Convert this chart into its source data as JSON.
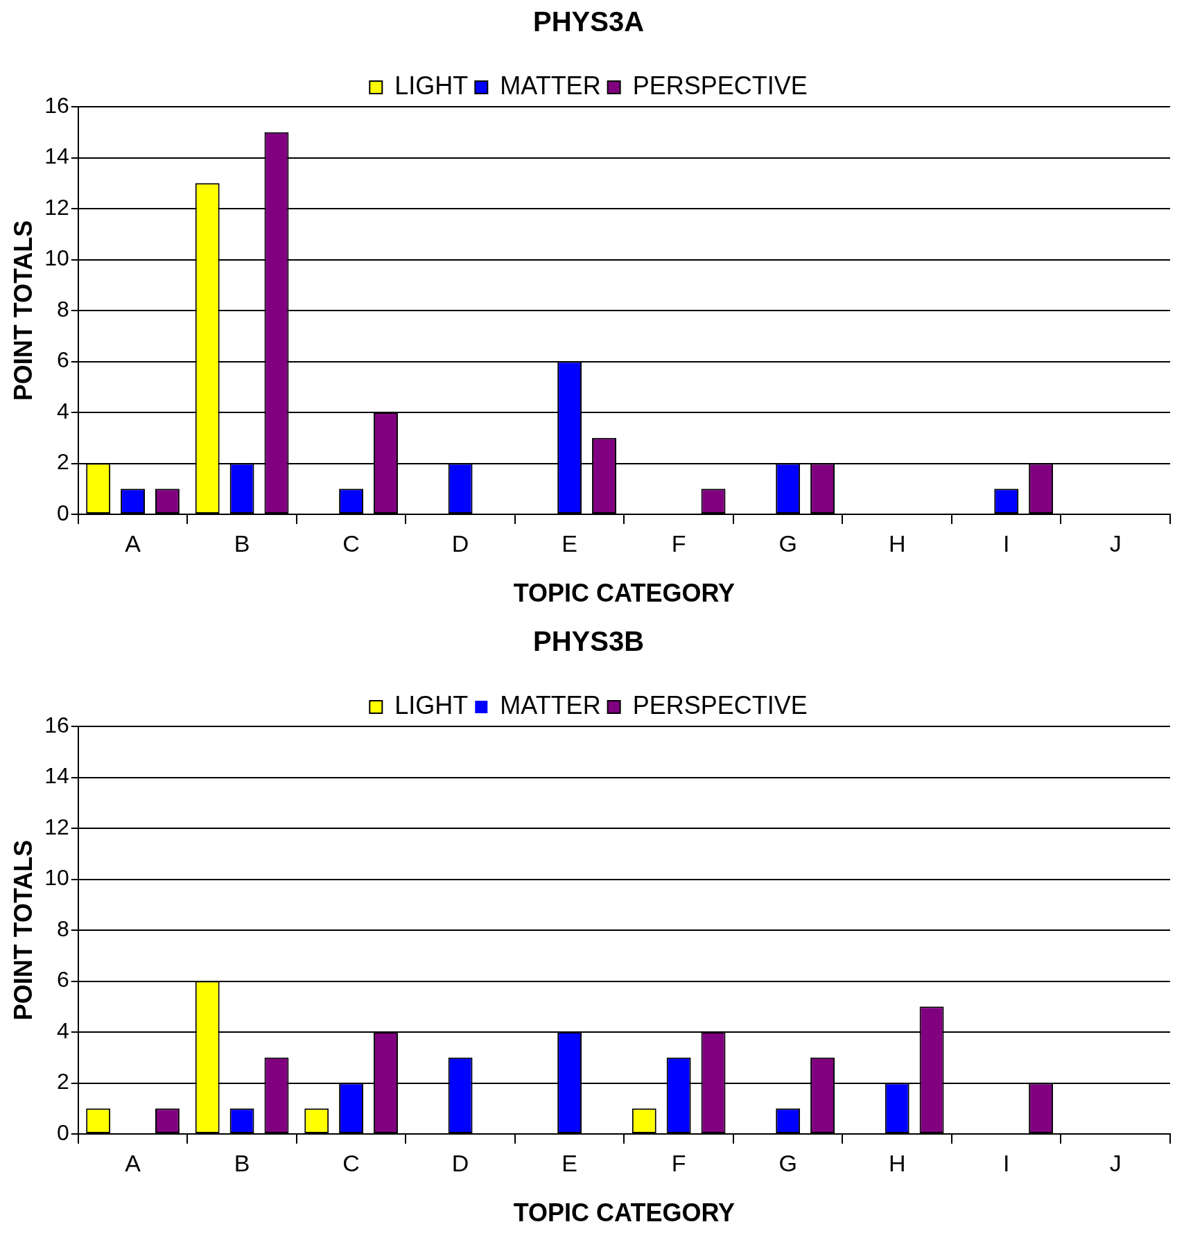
{
  "chart_data": [
    {
      "type": "bar",
      "title": "PHYS3A",
      "xlabel": "TOPIC CATEGORY",
      "ylabel": "POINT TOTALS",
      "categories": [
        "A",
        "B",
        "C",
        "D",
        "E",
        "F",
        "G",
        "H",
        "I",
        "J"
      ],
      "series": [
        {
          "name": "LIGHT",
          "color": "#ffff00",
          "values": [
            2,
            13,
            0,
            0,
            0,
            0,
            0,
            0,
            0,
            0
          ]
        },
        {
          "name": "MATTER",
          "color": "#0000ff",
          "values": [
            1,
            2,
            1,
            2,
            6,
            0,
            2,
            0,
            1,
            0
          ]
        },
        {
          "name": "PERSPECTIVE",
          "color": "#800080",
          "values": [
            1,
            15,
            4,
            0,
            3,
            1,
            2,
            0,
            2,
            0
          ]
        }
      ],
      "ylim": [
        0,
        16
      ],
      "yticks": [
        0,
        2,
        4,
        6,
        8,
        10,
        12,
        14,
        16
      ],
      "grid": "y",
      "legend": "top"
    },
    {
      "type": "bar",
      "title": "PHYS3B",
      "xlabel": "TOPIC CATEGORY",
      "ylabel": "POINT TOTALS",
      "categories": [
        "A",
        "B",
        "C",
        "D",
        "E",
        "F",
        "G",
        "H",
        "I",
        "J"
      ],
      "series": [
        {
          "name": "LIGHT",
          "color": "#ffff00",
          "values": [
            1,
            6,
            1,
            0,
            0,
            1,
            0,
            0,
            0,
            0
          ]
        },
        {
          "name": "MATTER",
          "color": "#0000ff",
          "values": [
            0,
            1,
            2,
            3,
            4,
            3,
            1,
            2,
            0,
            0
          ]
        },
        {
          "name": "PERSPECTIVE",
          "color": "#800080",
          "values": [
            1,
            3,
            4,
            0,
            0,
            4,
            3,
            5,
            2,
            0
          ]
        }
      ],
      "ylim": [
        0,
        16
      ],
      "yticks": [
        0,
        2,
        4,
        6,
        8,
        10,
        12,
        14,
        16
      ],
      "grid": "y",
      "legend": "top"
    }
  ]
}
